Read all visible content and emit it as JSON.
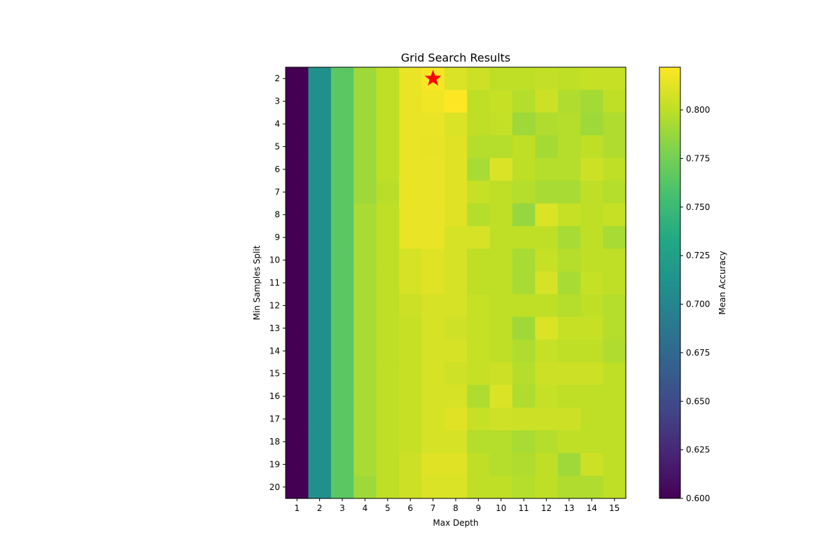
{
  "chart_data": {
    "type": "heatmap",
    "title": "Grid Search Results",
    "xlabel": "Max Depth",
    "ylabel": "Min Samples Split",
    "x": [
      1,
      2,
      3,
      4,
      5,
      6,
      7,
      8,
      9,
      10,
      11,
      12,
      13,
      14,
      15
    ],
    "y": [
      2,
      3,
      4,
      5,
      6,
      7,
      8,
      9,
      10,
      11,
      12,
      13,
      14,
      15,
      16,
      17,
      18,
      19,
      20
    ],
    "colormap": "viridis",
    "colorbar": {
      "label": "Mean Accuracy",
      "range": [
        0.6,
        0.822
      ],
      "ticks": [
        0.6,
        0.625,
        0.65,
        0.675,
        0.7,
        0.725,
        0.75,
        0.775,
        0.8
      ]
    },
    "marker": {
      "shape": "star",
      "color": "#ff0000",
      "max_depth": 7,
      "min_samples_split": 2
    },
    "values": [
      [
        0.6,
        0.71,
        0.765,
        0.79,
        0.8,
        0.815,
        0.82,
        0.81,
        0.805,
        0.8,
        0.8,
        0.802,
        0.8,
        0.803,
        0.803
      ],
      [
        0.6,
        0.71,
        0.765,
        0.79,
        0.8,
        0.815,
        0.818,
        0.822,
        0.8,
        0.803,
        0.797,
        0.805,
        0.795,
        0.792,
        0.8
      ],
      [
        0.6,
        0.71,
        0.765,
        0.79,
        0.8,
        0.815,
        0.815,
        0.81,
        0.8,
        0.802,
        0.79,
        0.795,
        0.797,
        0.79,
        0.795
      ],
      [
        0.6,
        0.71,
        0.765,
        0.79,
        0.8,
        0.815,
        0.814,
        0.812,
        0.797,
        0.797,
        0.8,
        0.792,
        0.797,
        0.8,
        0.795
      ],
      [
        0.6,
        0.71,
        0.765,
        0.79,
        0.8,
        0.815,
        0.815,
        0.812,
        0.793,
        0.81,
        0.8,
        0.797,
        0.797,
        0.805,
        0.8
      ],
      [
        0.6,
        0.71,
        0.765,
        0.79,
        0.798,
        0.815,
        0.815,
        0.812,
        0.803,
        0.8,
        0.797,
        0.793,
        0.793,
        0.8,
        0.797
      ],
      [
        0.6,
        0.71,
        0.765,
        0.793,
        0.8,
        0.815,
        0.815,
        0.812,
        0.797,
        0.8,
        0.787,
        0.81,
        0.803,
        0.8,
        0.803
      ],
      [
        0.6,
        0.71,
        0.765,
        0.793,
        0.8,
        0.815,
        0.815,
        0.808,
        0.808,
        0.8,
        0.8,
        0.8,
        0.793,
        0.8,
        0.793
      ],
      [
        0.6,
        0.71,
        0.765,
        0.793,
        0.8,
        0.808,
        0.812,
        0.808,
        0.8,
        0.8,
        0.793,
        0.803,
        0.797,
        0.8,
        0.8
      ],
      [
        0.6,
        0.71,
        0.765,
        0.793,
        0.8,
        0.808,
        0.812,
        0.808,
        0.8,
        0.8,
        0.793,
        0.808,
        0.793,
        0.803,
        0.8
      ],
      [
        0.6,
        0.71,
        0.765,
        0.793,
        0.8,
        0.805,
        0.808,
        0.808,
        0.803,
        0.8,
        0.8,
        0.8,
        0.797,
        0.8,
        0.797
      ],
      [
        0.6,
        0.71,
        0.765,
        0.793,
        0.8,
        0.803,
        0.808,
        0.806,
        0.803,
        0.8,
        0.79,
        0.81,
        0.803,
        0.803,
        0.797
      ],
      [
        0.6,
        0.71,
        0.765,
        0.793,
        0.8,
        0.803,
        0.808,
        0.808,
        0.803,
        0.8,
        0.795,
        0.803,
        0.8,
        0.8,
        0.795
      ],
      [
        0.6,
        0.71,
        0.765,
        0.793,
        0.8,
        0.803,
        0.808,
        0.806,
        0.803,
        0.805,
        0.797,
        0.805,
        0.805,
        0.805,
        0.8
      ],
      [
        0.6,
        0.71,
        0.765,
        0.793,
        0.8,
        0.803,
        0.808,
        0.808,
        0.795,
        0.81,
        0.795,
        0.803,
        0.8,
        0.8,
        0.8
      ],
      [
        0.6,
        0.71,
        0.765,
        0.793,
        0.8,
        0.803,
        0.808,
        0.812,
        0.803,
        0.806,
        0.805,
        0.805,
        0.805,
        0.8,
        0.8
      ],
      [
        0.6,
        0.71,
        0.765,
        0.793,
        0.8,
        0.803,
        0.808,
        0.808,
        0.797,
        0.797,
        0.793,
        0.797,
        0.8,
        0.8,
        0.8
      ],
      [
        0.6,
        0.71,
        0.765,
        0.793,
        0.8,
        0.805,
        0.812,
        0.812,
        0.8,
        0.797,
        0.795,
        0.8,
        0.79,
        0.805,
        0.8
      ],
      [
        0.6,
        0.71,
        0.765,
        0.79,
        0.8,
        0.805,
        0.81,
        0.81,
        0.8,
        0.8,
        0.797,
        0.8,
        0.795,
        0.795,
        0.8
      ]
    ]
  }
}
